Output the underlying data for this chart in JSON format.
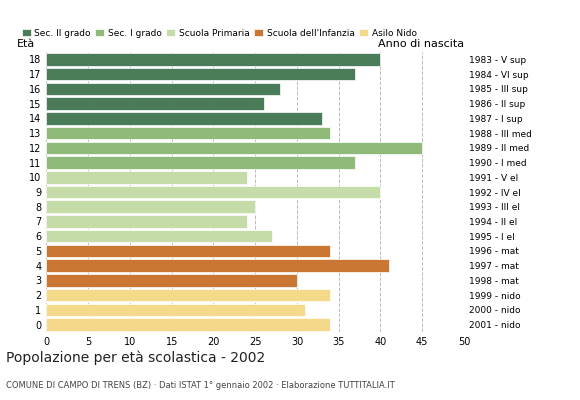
{
  "ages": [
    18,
    17,
    16,
    15,
    14,
    13,
    12,
    11,
    10,
    9,
    8,
    7,
    6,
    5,
    4,
    3,
    2,
    1,
    0
  ],
  "values": [
    40,
    37,
    28,
    26,
    33,
    34,
    45,
    37,
    24,
    40,
    25,
    24,
    27,
    34,
    41,
    30,
    34,
    31,
    34
  ],
  "colors": [
    "#4a7c59",
    "#4a7c59",
    "#4a7c59",
    "#4a7c59",
    "#4a7c59",
    "#8fba7a",
    "#8fba7a",
    "#8fba7a",
    "#c5dba8",
    "#c5dba8",
    "#c5dba8",
    "#c5dba8",
    "#c5dba8",
    "#c97733",
    "#c97733",
    "#c97733",
    "#f5d98b",
    "#f5d98b",
    "#f5d98b"
  ],
  "right_labels_by_age": {
    "18": "1983 - V sup",
    "17": "1984 - VI sup",
    "16": "1985 - III sup",
    "15": "1986 - II sup",
    "14": "1987 - I sup",
    "13": "1988 - III med",
    "12": "1989 - II med",
    "11": "1990 - I med",
    "10": "1991 - V el",
    "9": "1992 - IV el",
    "8": "1993 - III el",
    "7": "1994 - II el",
    "6": "1995 - I el",
    "5": "1996 - mat",
    "4": "1997 - mat",
    "3": "1998 - mat",
    "2": "1999 - nido",
    "1": "2000 - nido",
    "0": "2001 - nido"
  },
  "legend_labels": [
    "Sec. II grado",
    "Sec. I grado",
    "Scuola Primaria",
    "Scuola dell'Infanzia",
    "Asilo Nido"
  ],
  "legend_colors": [
    "#4a7c59",
    "#8fba7a",
    "#c5dba8",
    "#c97733",
    "#f5d98b"
  ],
  "xlabel_eta": "Età",
  "xlabel_anno": "Anno di nascita",
  "title": "Popolazione per età scolastica - 2002",
  "subtitle": "COMUNE DI CAMPO DI TRENS (BZ) · Dati ISTAT 1° gennaio 2002 · Elaborazione TUTTITALIA.IT",
  "xlim": [
    0,
    50
  ],
  "xticks": [
    0,
    5,
    10,
    15,
    20,
    25,
    30,
    35,
    40,
    45,
    50
  ],
  "grid_color": "#bbbbbb",
  "bg_color": "#ffffff"
}
